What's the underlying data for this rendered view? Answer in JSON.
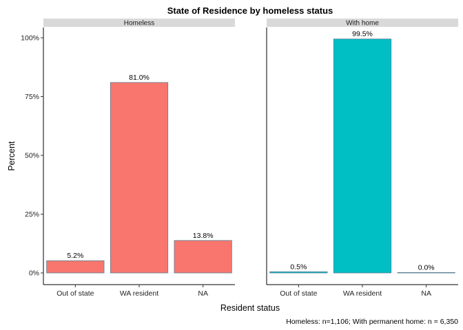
{
  "chart_data": {
    "type": "bar",
    "title": "State of Residence by homeless status",
    "xlabel": "Resident status",
    "ylabel": "Percent",
    "caption": "Homeless: n=1,106; With permanent home: n = 6,350",
    "ylim": [
      0,
      100
    ],
    "y_ticks": [
      "0%",
      "25%",
      "50%",
      "75%",
      "100%"
    ],
    "y_tick_values": [
      0,
      25,
      50,
      75,
      100
    ],
    "categories": [
      "Out of state",
      "WA resident",
      "NA"
    ],
    "grid": false,
    "facets": [
      {
        "name": "Homeless",
        "color": "#F8766D",
        "values": [
          5.2,
          81.0,
          13.8
        ],
        "labels": [
          "5.2%",
          "81.0%",
          "13.8%"
        ]
      },
      {
        "name": "With home",
        "color": "#00BFC4",
        "values": [
          0.5,
          99.5,
          0.0
        ],
        "labels": [
          "0.5%",
          "99.5%",
          "0.0%"
        ]
      }
    ],
    "strip_color": "#D9D9D9",
    "bar_outline_color": "#5B7F95"
  }
}
